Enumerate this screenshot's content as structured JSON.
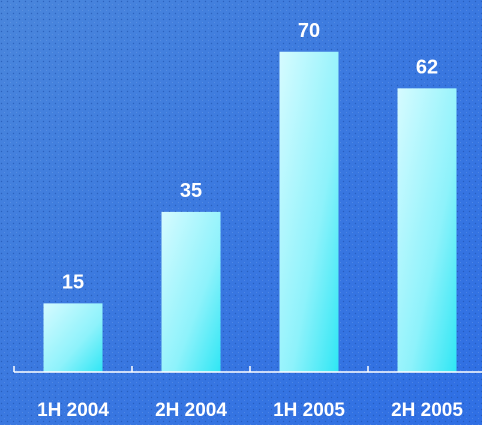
{
  "chart_data": {
    "type": "bar",
    "categories": [
      "1H 2004",
      "2H 2004",
      "1H 2005",
      "2H 2005"
    ],
    "values": [
      15,
      35,
      70,
      62
    ],
    "ylim": [
      0,
      80
    ]
  }
}
